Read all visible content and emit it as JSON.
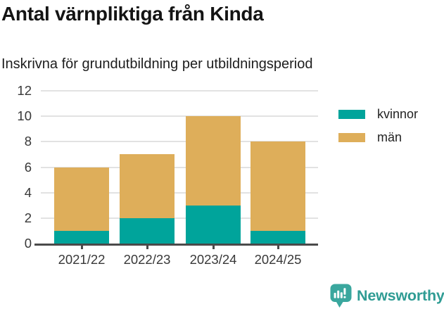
{
  "chart_data": {
    "type": "bar",
    "stacked": true,
    "title": "Antal värnpliktiga från Kinda",
    "subtitle": "Inskrivna för grundutbildning per utbildningsperiod",
    "categories": [
      "2021/22",
      "2022/23",
      "2023/24",
      "2024/25"
    ],
    "series": [
      {
        "name": "kvinnor",
        "color": "#00a49b",
        "values": [
          1,
          2,
          3,
          1
        ]
      },
      {
        "name": "män",
        "color": "#deae5a",
        "values": [
          5,
          5,
          7,
          7
        ]
      }
    ],
    "totals": [
      6,
      7,
      10,
      8
    ],
    "xlabel": "",
    "ylabel": "",
    "ylim": [
      0,
      12
    ],
    "yticks": [
      0,
      2,
      4,
      6,
      8,
      10,
      12
    ],
    "grid": true,
    "gridline_color": "#e2e2e2",
    "axis_color": "#4a4a4a",
    "tick_text_color": "#383838",
    "legend_position": "right",
    "background": "#ffffff"
  },
  "branding": {
    "name": "Newsworthy",
    "text_color": "#2f9c94",
    "icon": "newsworthy-chart-bubble-icon",
    "icon_color": "#3aa79e"
  }
}
